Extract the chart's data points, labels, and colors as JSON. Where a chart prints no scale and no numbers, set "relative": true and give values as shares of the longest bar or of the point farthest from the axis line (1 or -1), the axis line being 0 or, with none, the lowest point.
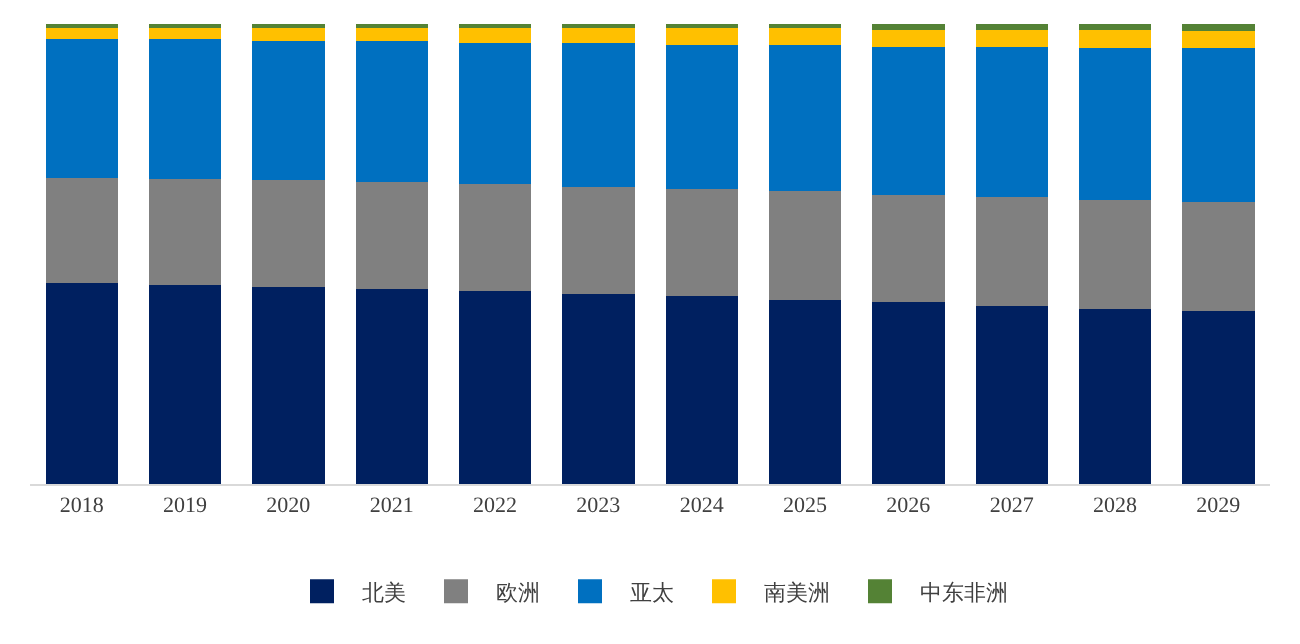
{
  "chart_data": {
    "type": "bar",
    "stacked": true,
    "relative": true,
    "legend": "bottom",
    "categories": [
      "2018",
      "2019",
      "2020",
      "2021",
      "2022",
      "2023",
      "2024",
      "2025",
      "2026",
      "2027",
      "2028",
      "2029"
    ],
    "series": [
      {
        "name": "北美",
        "color": "#002060",
        "values": [
          0.437,
          0.433,
          0.429,
          0.424,
          0.42,
          0.412,
          0.408,
          0.4,
          0.396,
          0.388,
          0.38,
          0.376
        ]
      },
      {
        "name": "欧洲",
        "color": "#808080",
        "values": [
          0.229,
          0.229,
          0.232,
          0.233,
          0.233,
          0.233,
          0.233,
          0.237,
          0.233,
          0.237,
          0.237,
          0.237
        ]
      },
      {
        "name": "亚太",
        "color": "#0070c0",
        "values": [
          0.302,
          0.306,
          0.302,
          0.306,
          0.306,
          0.314,
          0.314,
          0.318,
          0.322,
          0.326,
          0.33,
          0.334
        ]
      },
      {
        "name": "南美洲",
        "color": "#ffc000",
        "values": [
          0.024,
          0.024,
          0.029,
          0.029,
          0.033,
          0.033,
          0.037,
          0.037,
          0.037,
          0.037,
          0.041,
          0.037
        ]
      },
      {
        "name": "中东非洲",
        "color": "#548235",
        "values": [
          0.008,
          0.008,
          0.008,
          0.008,
          0.008,
          0.008,
          0.008,
          0.008,
          0.012,
          0.012,
          0.012,
          0.016
        ]
      }
    ]
  }
}
